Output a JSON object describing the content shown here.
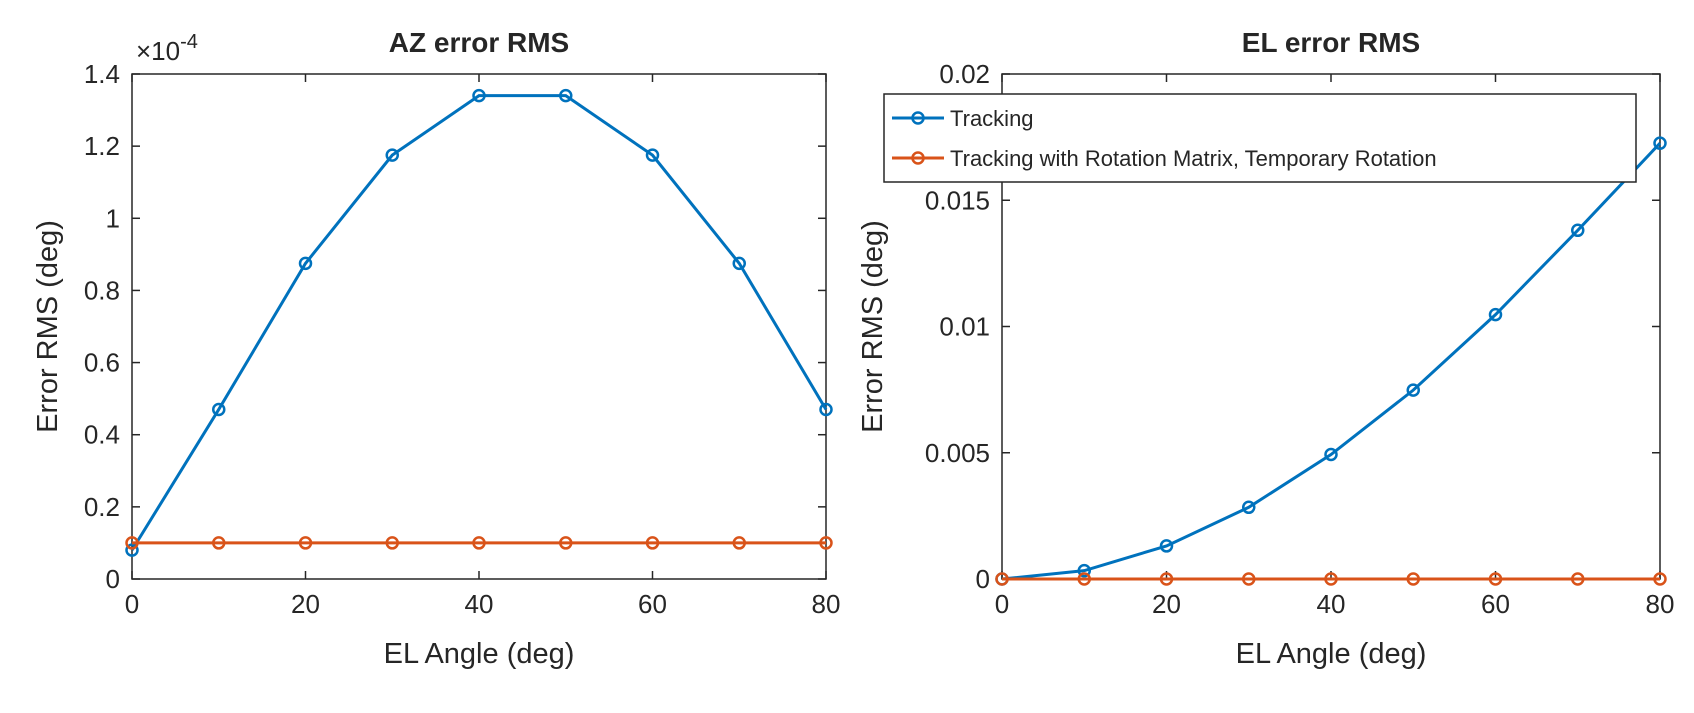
{
  "chart_data": [
    {
      "type": "line",
      "title": "AZ error RMS",
      "xlabel": "EL Angle (deg)",
      "ylabel": "Error RMS (deg)",
      "exponent_label": "×10",
      "exponent_power": "-4",
      "xlim": [
        0,
        80
      ],
      "ylim": [
        0,
        1.4
      ],
      "xticks": [
        0,
        20,
        40,
        60,
        80
      ],
      "xtick_labels": [
        "0",
        "20",
        "40",
        "60",
        "80"
      ],
      "yticks": [
        0,
        0.2,
        0.4,
        0.6,
        0.8,
        1,
        1.2,
        1.4
      ],
      "ytick_labels": [
        "0",
        "0.2",
        "0.4",
        "0.6",
        "0.8",
        "1",
        "1.2",
        "1.4"
      ],
      "x": [
        0,
        10,
        20,
        30,
        40,
        50,
        60,
        70,
        80
      ],
      "series": [
        {
          "name": "Tracking",
          "color": "#0072BD",
          "values": [
            0.08,
            0.47,
            0.875,
            1.175,
            1.34,
            1.34,
            1.175,
            0.875,
            0.47
          ]
        },
        {
          "name": "Tracking with Rotation Matrix, Temporary Rotation",
          "color": "#D95319",
          "values": [
            0.1,
            0.1,
            0.1,
            0.1,
            0.1,
            0.1,
            0.1,
            0.1,
            0.1
          ]
        }
      ],
      "grid": false,
      "legend": "none"
    },
    {
      "type": "line",
      "title": "EL error RMS",
      "xlabel": "EL Angle (deg)",
      "ylabel": "Error RMS (deg)",
      "xlim": [
        0,
        80
      ],
      "ylim": [
        0,
        0.02
      ],
      "xticks": [
        0,
        20,
        40,
        60,
        80
      ],
      "xtick_labels": [
        "0",
        "20",
        "40",
        "60",
        "80"
      ],
      "yticks": [
        0,
        0.005,
        0.01,
        0.015,
        0.02
      ],
      "ytick_labels": [
        "0",
        "0.005",
        "0.01",
        "0.015",
        "0.02"
      ],
      "x": [
        0,
        10,
        20,
        30,
        40,
        50,
        60,
        70,
        80
      ],
      "series": [
        {
          "name": "Tracking",
          "color": "#0072BD",
          "values": [
            0.0,
            0.00033,
            0.00131,
            0.00284,
            0.00493,
            0.00748,
            0.01047,
            0.01381,
            0.01726
          ]
        },
        {
          "name": "Tracking with Rotation Matrix, Temporary Rotation",
          "color": "#D95319",
          "values": [
            0,
            0,
            0,
            0,
            0,
            0,
            0,
            0,
            0
          ]
        }
      ],
      "grid": false,
      "legend": "top-right"
    }
  ]
}
